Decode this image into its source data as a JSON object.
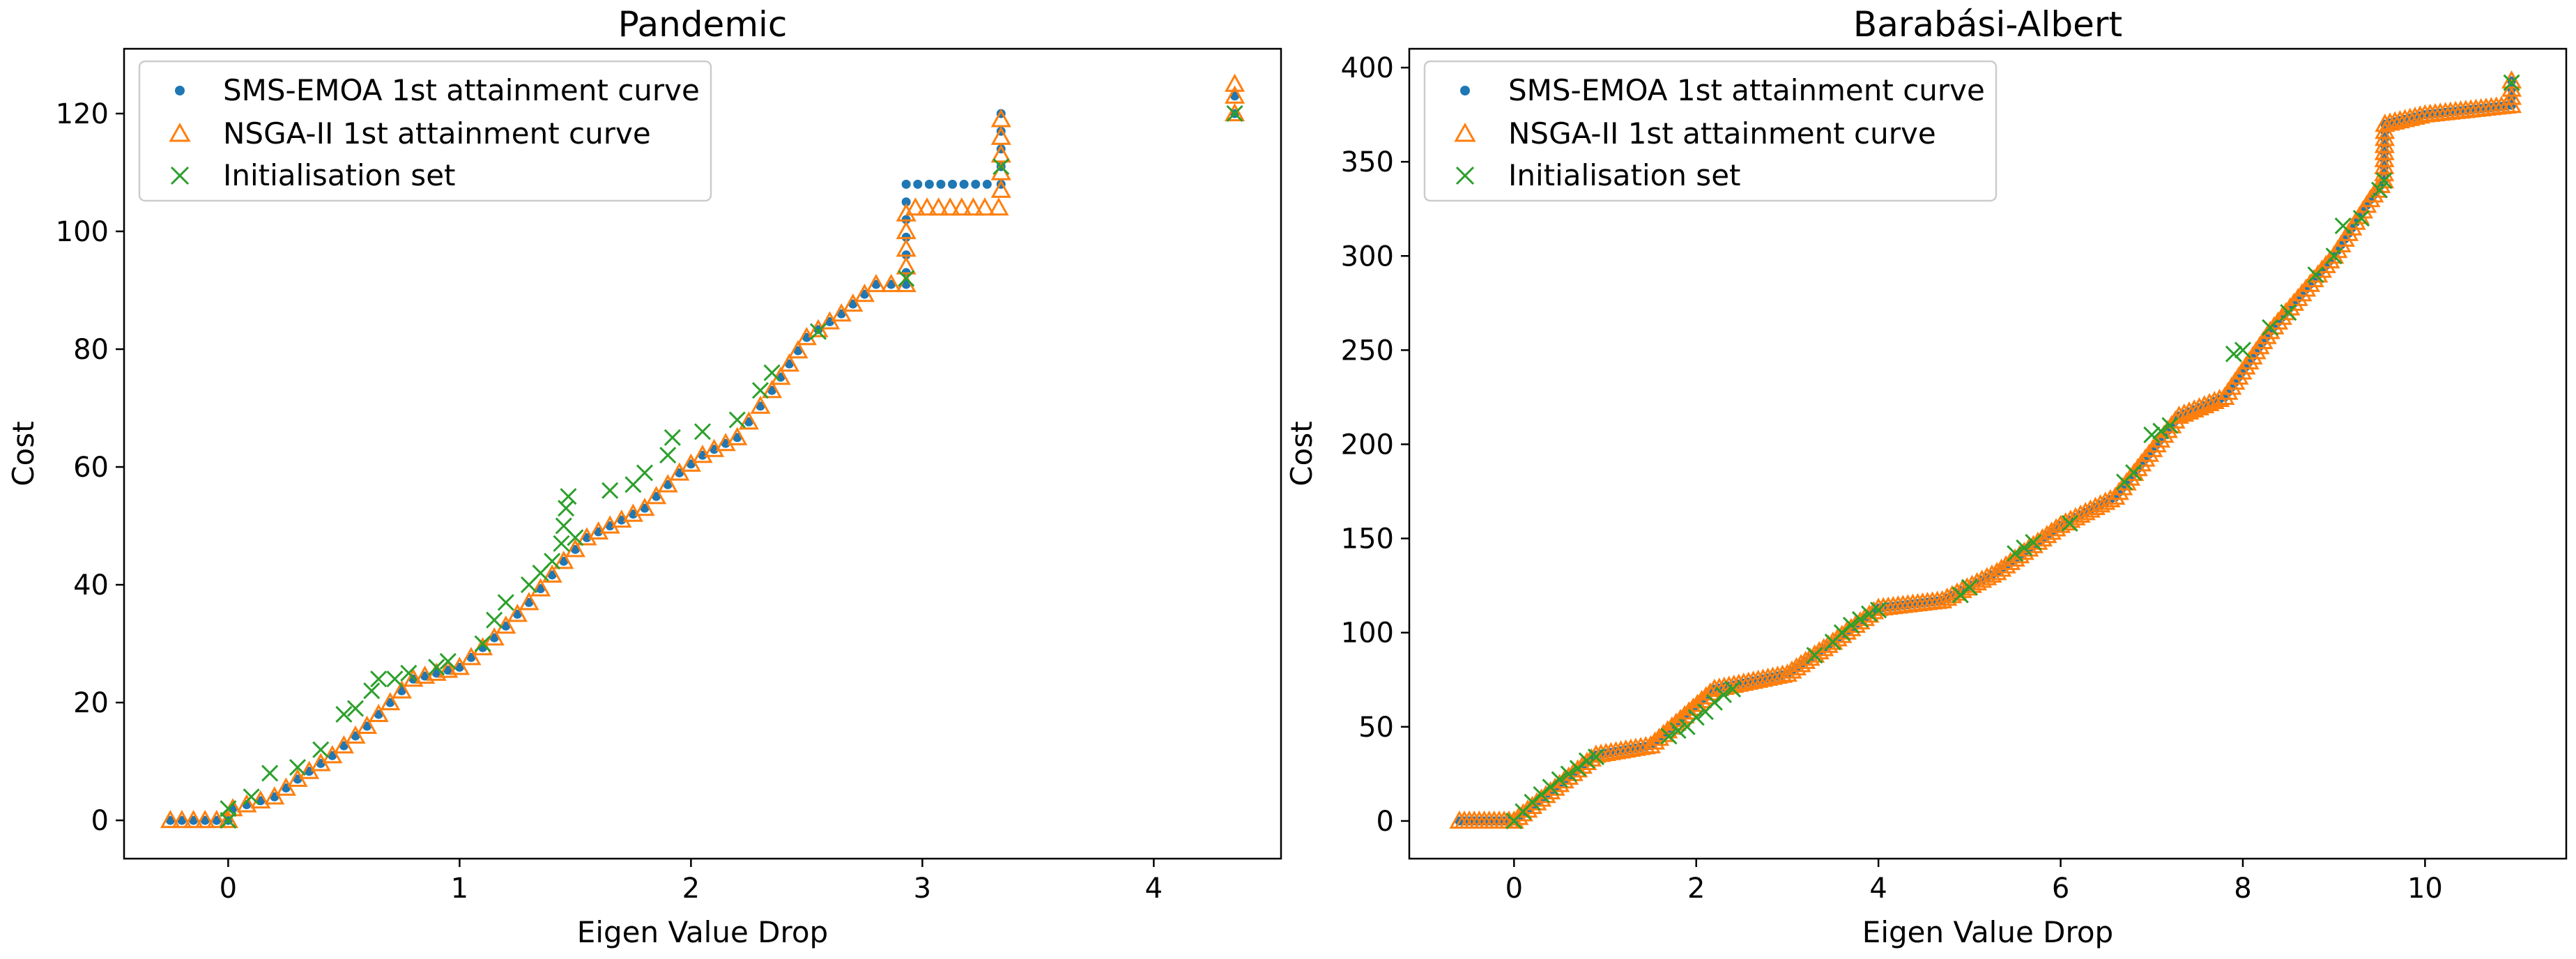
{
  "figure": {},
  "chart_data": [
    {
      "type": "scatter",
      "title": "Pandemic",
      "xlabel": "Eigen Value Drop",
      "ylabel": "Cost",
      "xlim": [
        -0.45,
        4.55
      ],
      "ylim": [
        -6.5,
        131
      ],
      "xticks": [
        0,
        1,
        2,
        3,
        4
      ],
      "yticks": [
        0,
        20,
        40,
        60,
        80,
        100,
        120
      ],
      "grid": false,
      "legend_position": "top-left",
      "legend": [
        "SMS-EMOA 1st attainment curve",
        "NSGA-II 1st attainment curve",
        "Initialisation set"
      ],
      "colors": {
        "sms": "#1f77b4",
        "nsga": "#ff7f0e",
        "init": "#2ca02c"
      },
      "curve_knots": [
        [
          -0.25,
          0
        ],
        [
          0,
          0
        ],
        [
          0.02,
          2
        ],
        [
          0.2,
          4
        ],
        [
          0.3,
          7
        ],
        [
          0.45,
          11
        ],
        [
          0.6,
          16
        ],
        [
          0.7,
          20
        ],
        [
          0.8,
          24
        ],
        [
          1.0,
          26
        ],
        [
          1.15,
          31
        ],
        [
          1.3,
          37
        ],
        [
          1.45,
          44
        ],
        [
          1.55,
          48
        ],
        [
          1.8,
          53
        ],
        [
          1.95,
          59
        ],
        [
          2.05,
          62
        ],
        [
          2.2,
          65
        ],
        [
          2.35,
          73
        ],
        [
          2.5,
          82
        ],
        [
          2.65,
          86
        ],
        [
          2.8,
          91
        ],
        [
          2.93,
          91
        ]
      ],
      "sms_extra": [
        [
          2.93,
          93
        ],
        [
          2.93,
          96
        ],
        [
          2.93,
          99
        ],
        [
          2.93,
          102
        ],
        [
          2.93,
          105
        ],
        [
          2.93,
          108
        ],
        [
          2.98,
          108
        ],
        [
          3.03,
          108
        ],
        [
          3.08,
          108
        ],
        [
          3.13,
          108
        ],
        [
          3.18,
          108
        ],
        [
          3.23,
          108
        ],
        [
          3.28,
          108
        ],
        [
          3.34,
          108
        ],
        [
          3.34,
          111
        ],
        [
          3.34,
          114
        ],
        [
          3.34,
          117
        ],
        [
          3.34,
          120
        ],
        [
          4.35,
          120
        ],
        [
          4.35,
          123
        ]
      ],
      "nsga_extra": [
        [
          2.93,
          94
        ],
        [
          2.93,
          97
        ],
        [
          2.93,
          100
        ],
        [
          2.93,
          103
        ],
        [
          2.97,
          104
        ],
        [
          3.02,
          104
        ],
        [
          3.07,
          104
        ],
        [
          3.12,
          104
        ],
        [
          3.17,
          104
        ],
        [
          3.22,
          104
        ],
        [
          3.27,
          104
        ],
        [
          3.33,
          104
        ],
        [
          3.34,
          107
        ],
        [
          3.34,
          110
        ],
        [
          3.34,
          113
        ],
        [
          3.34,
          116
        ],
        [
          3.34,
          119
        ],
        [
          4.35,
          120
        ],
        [
          4.35,
          123
        ],
        [
          4.35,
          125
        ]
      ],
      "init_points": [
        [
          0,
          0
        ],
        [
          0,
          2
        ],
        [
          0.1,
          4
        ],
        [
          0.18,
          8
        ],
        [
          0.3,
          9
        ],
        [
          0.4,
          12
        ],
        [
          0.5,
          18
        ],
        [
          0.55,
          19
        ],
        [
          0.62,
          22
        ],
        [
          0.65,
          24
        ],
        [
          0.72,
          24
        ],
        [
          0.78,
          25
        ],
        [
          0.9,
          26
        ],
        [
          0.95,
          27
        ],
        [
          1.1,
          30
        ],
        [
          1.15,
          34
        ],
        [
          1.2,
          37
        ],
        [
          1.3,
          40
        ],
        [
          1.35,
          42
        ],
        [
          1.4,
          44
        ],
        [
          1.44,
          47
        ],
        [
          1.45,
          50
        ],
        [
          1.46,
          53
        ],
        [
          1.47,
          55
        ],
        [
          1.5,
          48
        ],
        [
          1.65,
          56
        ],
        [
          1.75,
          57
        ],
        [
          1.8,
          59
        ],
        [
          1.9,
          62
        ],
        [
          1.92,
          65
        ],
        [
          2.05,
          66
        ],
        [
          2.2,
          68
        ],
        [
          2.3,
          73
        ],
        [
          2.35,
          76
        ],
        [
          2.55,
          83
        ],
        [
          2.93,
          92
        ],
        [
          3.34,
          111
        ],
        [
          4.35,
          120
        ]
      ]
    },
    {
      "type": "scatter",
      "title": "Barabási-Albert",
      "xlabel": "Eigen Value Drop",
      "ylabel": "Cost",
      "xlim": [
        -1.15,
        11.55
      ],
      "ylim": [
        -20,
        410
      ],
      "xticks": [
        0,
        2,
        4,
        6,
        8,
        10
      ],
      "yticks": [
        0,
        50,
        100,
        150,
        200,
        250,
        300,
        350,
        400
      ],
      "grid": false,
      "legend_position": "top-left",
      "legend": [
        "SMS-EMOA 1st attainment curve",
        "NSGA-II 1st attainment curve",
        "Initialisation set"
      ],
      "colors": {
        "sms": "#1f77b4",
        "nsga": "#ff7f0e",
        "init": "#2ca02c"
      },
      "curve_knots": [
        [
          -0.6,
          0
        ],
        [
          0,
          0
        ],
        [
          0.9,
          35
        ],
        [
          1.5,
          40
        ],
        [
          2.2,
          70
        ],
        [
          3.0,
          78
        ],
        [
          3.5,
          95
        ],
        [
          4.0,
          113
        ],
        [
          4.7,
          117
        ],
        [
          5.3,
          132
        ],
        [
          6.0,
          157
        ],
        [
          6.6,
          172
        ],
        [
          7.3,
          215
        ],
        [
          7.8,
          225
        ],
        [
          8.3,
          260
        ],
        [
          9.0,
          300
        ],
        [
          9.4,
          330
        ],
        [
          9.55,
          340
        ],
        [
          9.56,
          370
        ],
        [
          10.0,
          375
        ],
        [
          10.95,
          380
        ],
        [
          10.95,
          393
        ]
      ],
      "sms_extra": [],
      "nsga_extra": [],
      "init_points": [
        [
          0,
          0
        ],
        [
          0.1,
          5
        ],
        [
          0.2,
          10
        ],
        [
          0.3,
          14
        ],
        [
          0.4,
          18
        ],
        [
          0.5,
          22
        ],
        [
          0.6,
          25
        ],
        [
          0.7,
          28
        ],
        [
          0.8,
          32
        ],
        [
          0.9,
          34
        ],
        [
          1.7,
          45
        ],
        [
          1.8,
          48
        ],
        [
          1.9,
          50
        ],
        [
          2.0,
          55
        ],
        [
          2.1,
          58
        ],
        [
          2.2,
          63
        ],
        [
          2.3,
          67
        ],
        [
          2.4,
          70
        ],
        [
          3.3,
          88
        ],
        [
          3.5,
          95
        ],
        [
          3.6,
          100
        ],
        [
          3.7,
          104
        ],
        [
          3.8,
          107
        ],
        [
          3.9,
          110
        ],
        [
          4.0,
          112
        ],
        [
          4.9,
          120
        ],
        [
          5.0,
          124
        ],
        [
          5.5,
          142
        ],
        [
          5.6,
          145
        ],
        [
          5.7,
          148
        ],
        [
          6.1,
          158
        ],
        [
          6.7,
          180
        ],
        [
          6.8,
          185
        ],
        [
          7.0,
          205
        ],
        [
          7.1,
          207
        ],
        [
          7.2,
          210
        ],
        [
          7.9,
          248
        ],
        [
          8.0,
          250
        ],
        [
          8.3,
          262
        ],
        [
          8.5,
          270
        ],
        [
          8.8,
          290
        ],
        [
          9.0,
          300
        ],
        [
          9.1,
          316
        ],
        [
          9.3,
          320
        ],
        [
          9.5,
          335
        ],
        [
          9.55,
          340
        ],
        [
          10.95,
          392
        ]
      ]
    }
  ]
}
